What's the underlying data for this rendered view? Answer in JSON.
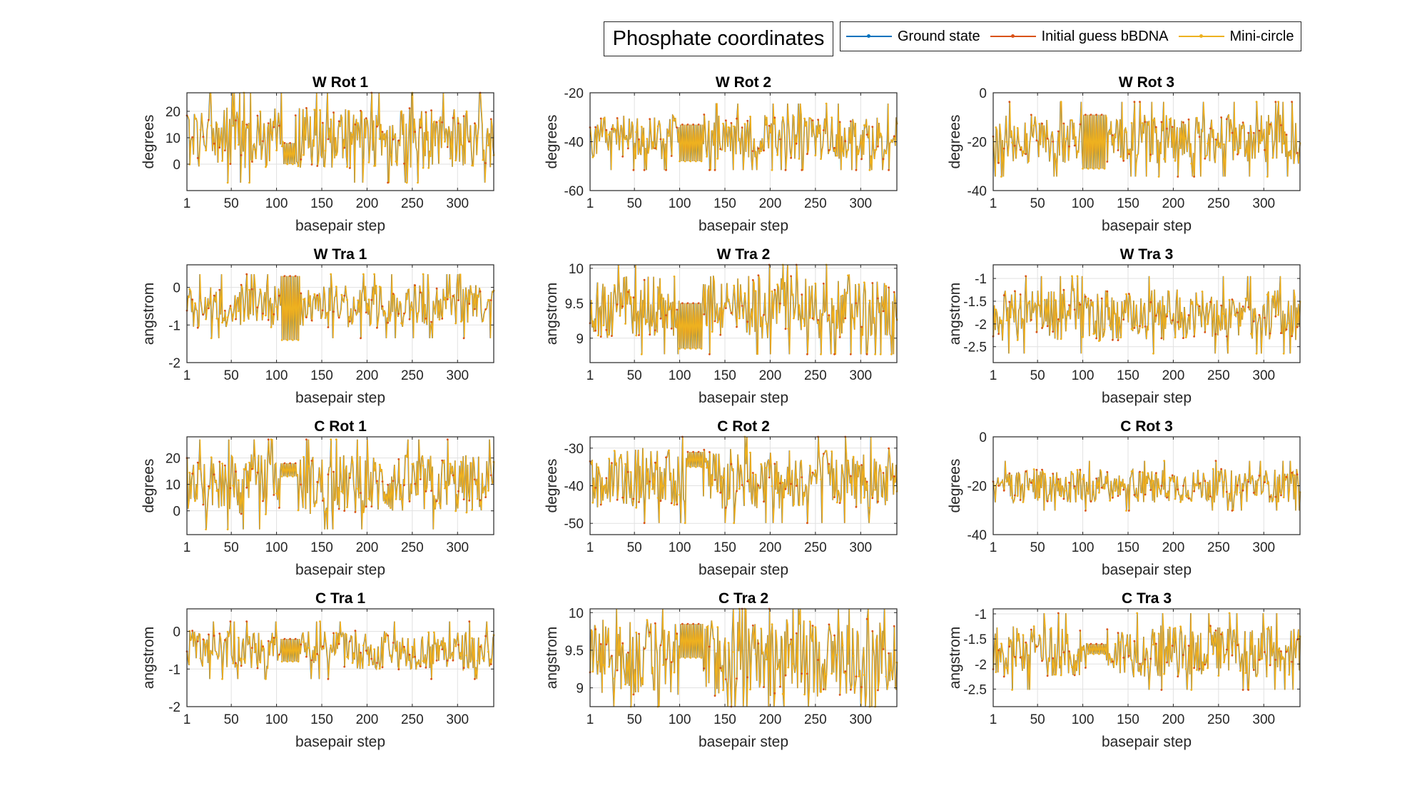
{
  "figure": {
    "title": "Phosphate coordinates",
    "legend": [
      {
        "label": "Ground state",
        "color": "#0072BD"
      },
      {
        "label": "Initial guess bBDNA",
        "color": "#D95319"
      },
      {
        "label": "Mini-circle",
        "color": "#EDB120"
      }
    ]
  },
  "chart_data": [
    {
      "type": "line",
      "title": "W Rot 1",
      "xlabel": "basepair step",
      "ylabel": "degrees",
      "xlim": [
        1,
        340
      ],
      "ylim": [
        -10,
        27
      ],
      "x_ticks": [
        1,
        50,
        100,
        150,
        200,
        250,
        300
      ],
      "y_ticks": [
        0,
        10,
        20
      ],
      "x": "1..340",
      "series": [
        {
          "name": "Ground state",
          "center": 10,
          "amp": 10
        },
        {
          "name": "Initial guess bBDNA",
          "center": 10,
          "amp": 10
        },
        {
          "name": "Mini-circle",
          "center": 10,
          "amp": 10
        }
      ],
      "plateau": {
        "x": [
          108,
          120
        ],
        "high": 8,
        "low": 0
      },
      "grid": true
    },
    {
      "type": "line",
      "title": "W Rot 2",
      "xlabel": "basepair step",
      "ylabel": "degrees",
      "xlim": [
        1,
        340
      ],
      "ylim": [
        -60,
        -20
      ],
      "x_ticks": [
        1,
        50,
        100,
        150,
        200,
        250,
        300
      ],
      "y_ticks": [
        -60,
        -40,
        -20
      ],
      "x": "1..340",
      "series": [
        {
          "name": "Ground state",
          "center": -38,
          "amp": 8
        },
        {
          "name": "Initial guess bBDNA",
          "center": -38,
          "amp": 8
        },
        {
          "name": "Mini-circle",
          "center": -38,
          "amp": 8
        }
      ],
      "plateau": {
        "x": [
          100,
          125
        ],
        "high": -33,
        "low": -48
      },
      "grid": true
    },
    {
      "type": "line",
      "title": "W Rot 3",
      "xlabel": "basepair step",
      "ylabel": "degrees",
      "xlim": [
        1,
        340
      ],
      "ylim": [
        -40,
        0
      ],
      "x_ticks": [
        1,
        50,
        100,
        150,
        200,
        250,
        300
      ],
      "y_ticks": [
        -40,
        -20,
        0
      ],
      "x": "1..340",
      "series": [
        {
          "name": "Ground state",
          "center": -19,
          "amp": 9
        },
        {
          "name": "Initial guess bBDNA",
          "center": -19,
          "amp": 9
        },
        {
          "name": "Mini-circle",
          "center": -19,
          "amp": 9
        }
      ],
      "plateau": {
        "x": [
          100,
          125
        ],
        "high": -9,
        "low": -31
      },
      "grid": true
    },
    {
      "type": "line",
      "title": "W Tra 1",
      "xlabel": "basepair step",
      "ylabel": "angstrom",
      "xlim": [
        1,
        340
      ],
      "ylim": [
        -2,
        0.6
      ],
      "x_ticks": [
        1,
        50,
        100,
        150,
        200,
        250,
        300
      ],
      "y_ticks": [
        -2,
        -1,
        0
      ],
      "x": "1..340",
      "series": [
        {
          "name": "Ground state",
          "center": -0.5,
          "amp": 0.5
        },
        {
          "name": "Initial guess bBDNA",
          "center": -0.5,
          "amp": 0.5
        },
        {
          "name": "Mini-circle",
          "center": -0.5,
          "amp": 0.5
        }
      ],
      "plateau": {
        "x": [
          105,
          125
        ],
        "high": 0.3,
        "low": -1.4
      },
      "grid": true
    },
    {
      "type": "line",
      "title": "W Tra 2",
      "xlabel": "basepair step",
      "ylabel": "angstrom",
      "xlim": [
        1,
        340
      ],
      "ylim": [
        8.65,
        10.05
      ],
      "x_ticks": [
        1,
        50,
        100,
        150,
        200,
        250,
        300
      ],
      "y_ticks": [
        9,
        9.5,
        10
      ],
      "x": "1..340",
      "series": [
        {
          "name": "Ground state",
          "center": 9.45,
          "amp": 0.4
        },
        {
          "name": "Initial guess bBDNA",
          "center": 9.45,
          "amp": 0.4
        },
        {
          "name": "Mini-circle",
          "center": 9.45,
          "amp": 0.4
        }
      ],
      "plateau": {
        "x": [
          100,
          125
        ],
        "high": 9.5,
        "low": 8.85
      },
      "grid": true
    },
    {
      "type": "line",
      "title": "W Tra 3",
      "xlabel": "basepair step",
      "ylabel": "angstrom",
      "xlim": [
        1,
        340
      ],
      "ylim": [
        -2.85,
        -0.7
      ],
      "x_ticks": [
        1,
        50,
        100,
        150,
        200,
        250,
        300
      ],
      "y_ticks": [
        -2.5,
        -2,
        -1.5,
        -1
      ],
      "x": "1..340",
      "series": [
        {
          "name": "Ground state",
          "center": -1.8,
          "amp": 0.5
        },
        {
          "name": "Initial guess bBDNA",
          "center": -1.8,
          "amp": 0.5
        },
        {
          "name": "Mini-circle",
          "center": -1.8,
          "amp": 0.5
        }
      ],
      "plateau": null,
      "grid": true
    },
    {
      "type": "line",
      "title": "C Rot 1",
      "xlabel": "basepair step",
      "ylabel": "degrees",
      "xlim": [
        1,
        340
      ],
      "ylim": [
        -9,
        28
      ],
      "x_ticks": [
        1,
        50,
        100,
        150,
        200,
        250,
        300
      ],
      "y_ticks": [
        0,
        10,
        20
      ],
      "x": "1..340",
      "series": [
        {
          "name": "Ground state",
          "center": 10,
          "amp": 10
        },
        {
          "name": "Initial guess bBDNA",
          "center": 10,
          "amp": 10
        },
        {
          "name": "Mini-circle",
          "center": 10,
          "amp": 10
        }
      ],
      "plateau": {
        "x": [
          105,
          122
        ],
        "high": 18,
        "low": 13
      },
      "grid": true
    },
    {
      "type": "line",
      "title": "C Rot 2",
      "xlabel": "basepair step",
      "ylabel": "degrees",
      "xlim": [
        1,
        340
      ],
      "ylim": [
        -53,
        -27
      ],
      "x_ticks": [
        1,
        50,
        100,
        150,
        200,
        250,
        300
      ],
      "y_ticks": [
        -50,
        -40,
        -30
      ],
      "x": "1..340",
      "series": [
        {
          "name": "Ground state",
          "center": -38,
          "amp": 7
        },
        {
          "name": "Initial guess bBDNA",
          "center": -38,
          "amp": 7
        },
        {
          "name": "Mini-circle",
          "center": -38,
          "amp": 7
        }
      ],
      "plateau": {
        "x": [
          108,
          125
        ],
        "high": -31,
        "low": -35
      },
      "grid": true
    },
    {
      "type": "line",
      "title": "C Rot 3",
      "xlabel": "basepair step",
      "ylabel": "degrees",
      "xlim": [
        1,
        340
      ],
      "ylim": [
        -40,
        0
      ],
      "x_ticks": [
        1,
        50,
        100,
        150,
        200,
        250,
        300
      ],
      "y_ticks": [
        -40,
        -20,
        0
      ],
      "x": "1..340",
      "series": [
        {
          "name": "Ground state",
          "center": -20,
          "amp": 6
        },
        {
          "name": "Initial guess bBDNA",
          "center": -20,
          "amp": 6
        },
        {
          "name": "Mini-circle",
          "center": -20,
          "amp": 6
        }
      ],
      "plateau": null,
      "grid": true
    },
    {
      "type": "line",
      "title": "C Tra 1",
      "xlabel": "basepair step",
      "ylabel": "angstrom",
      "xlim": [
        1,
        340
      ],
      "ylim": [
        -2,
        0.6
      ],
      "x_ticks": [
        1,
        50,
        100,
        150,
        200,
        250,
        300
      ],
      "y_ticks": [
        -2,
        -1,
        0
      ],
      "x": "1..340",
      "series": [
        {
          "name": "Ground state",
          "center": -0.5,
          "amp": 0.45
        },
        {
          "name": "Initial guess bBDNA",
          "center": -0.5,
          "amp": 0.45
        },
        {
          "name": "Mini-circle",
          "center": -0.5,
          "amp": 0.45
        }
      ],
      "plateau": {
        "x": [
          105,
          125
        ],
        "high": -0.2,
        "low": -0.8
      },
      "grid": true
    },
    {
      "type": "line",
      "title": "C Tra 2",
      "xlabel": "basepair step",
      "ylabel": "angstrom",
      "xlim": [
        1,
        340
      ],
      "ylim": [
        8.75,
        10.05
      ],
      "x_ticks": [
        1,
        50,
        100,
        150,
        200,
        250,
        300
      ],
      "y_ticks": [
        9,
        9.5,
        10
      ],
      "x": "1..340",
      "series": [
        {
          "name": "Ground state",
          "center": 9.4,
          "amp": 0.45
        },
        {
          "name": "Initial guess bBDNA",
          "center": 9.4,
          "amp": 0.45
        },
        {
          "name": "Mini-circle",
          "center": 9.4,
          "amp": 0.45
        }
      ],
      "plateau": {
        "x": [
          100,
          125
        ],
        "high": 9.85,
        "low": 9.4
      },
      "grid": true
    },
    {
      "type": "line",
      "title": "C Tra 3",
      "xlabel": "basepair step",
      "ylabel": "angstrom",
      "xlim": [
        1,
        340
      ],
      "ylim": [
        -2.85,
        -0.9
      ],
      "x_ticks": [
        1,
        50,
        100,
        150,
        200,
        250,
        300
      ],
      "y_ticks": [
        -2.5,
        -2,
        -1.5,
        -1
      ],
      "x": "1..340",
      "series": [
        {
          "name": "Ground state",
          "center": -1.75,
          "amp": 0.45
        },
        {
          "name": "Initial guess bBDNA",
          "center": -1.75,
          "amp": 0.45
        },
        {
          "name": "Mini-circle",
          "center": -1.75,
          "amp": 0.45
        }
      ],
      "plateau": {
        "x": [
          105,
          125
        ],
        "high": -1.6,
        "low": -1.8
      },
      "grid": true
    }
  ]
}
